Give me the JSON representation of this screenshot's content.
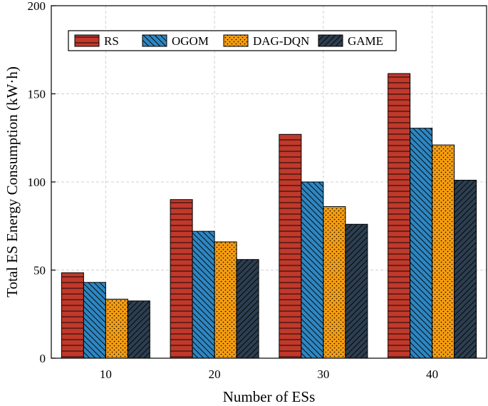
{
  "chart_data": {
    "type": "bar",
    "title": "",
    "xlabel": "Number of ESs",
    "ylabel": "Total ES Energy Consumption (kW·h)",
    "categories": [
      "10",
      "20",
      "30",
      "40"
    ],
    "ylim": [
      0,
      200
    ],
    "yticks": [
      0,
      50,
      100,
      150,
      200
    ],
    "grid": true,
    "legend_position": "top-left",
    "series": [
      {
        "name": "RS",
        "values": [
          48.5,
          90,
          127,
          161.5
        ],
        "color": "#c0392b",
        "pattern": "horizontal-lines"
      },
      {
        "name": "OGOM",
        "values": [
          43,
          72,
          100,
          130.5
        ],
        "color": "#2e86c1",
        "pattern": "diagonal-lines"
      },
      {
        "name": "DAG-DQN",
        "values": [
          33.5,
          66,
          86,
          121
        ],
        "color": "#f39c12",
        "pattern": "dots"
      },
      {
        "name": "GAME",
        "values": [
          32.5,
          56,
          76,
          101
        ],
        "color": "#2c3e50",
        "pattern": "diagonal-lines"
      }
    ]
  }
}
